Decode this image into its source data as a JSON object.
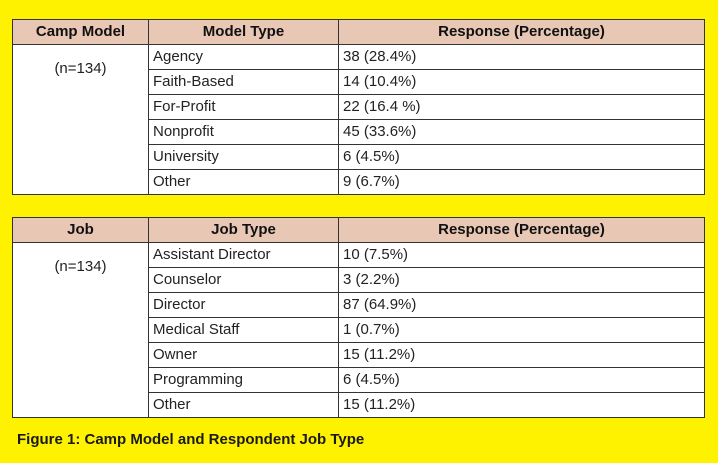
{
  "table1": {
    "headers": [
      "Camp Model",
      "Model Type",
      "Response (Percentage)"
    ],
    "group_label": "(n=134)",
    "rows": [
      {
        "type": "Agency",
        "response": "38 (28.4%)"
      },
      {
        "type": "Faith-Based",
        "response": "14 (10.4%)"
      },
      {
        "type": "For-Profit",
        "response": "22 (16.4 %)"
      },
      {
        "type": "Nonprofit",
        "response": "45 (33.6%)"
      },
      {
        "type": "University",
        "response": "6 (4.5%)"
      },
      {
        "type": "Other",
        "response": "9 (6.7%)"
      }
    ]
  },
  "table2": {
    "headers": [
      "Job",
      "Job Type",
      "Response (Percentage)"
    ],
    "group_label": "(n=134)",
    "rows": [
      {
        "type": "Assistant Director",
        "response": "10 (7.5%)"
      },
      {
        "type": "Counselor",
        "response": "3 (2.2%)"
      },
      {
        "type": "Director",
        "response": "87 (64.9%)"
      },
      {
        "type": "Medical Staff",
        "response": "1 (0.7%)"
      },
      {
        "type": "Owner",
        "response": "15 (11.2%)"
      },
      {
        "type": "Programming",
        "response": "6 (4.5%)"
      },
      {
        "type": "Other",
        "response": "15 (11.2%)"
      }
    ]
  },
  "caption": "Figure 1: Camp Model and Respondent Job Type",
  "colors": {
    "background": "#fff200",
    "header_fill": "#e8c7b5"
  }
}
